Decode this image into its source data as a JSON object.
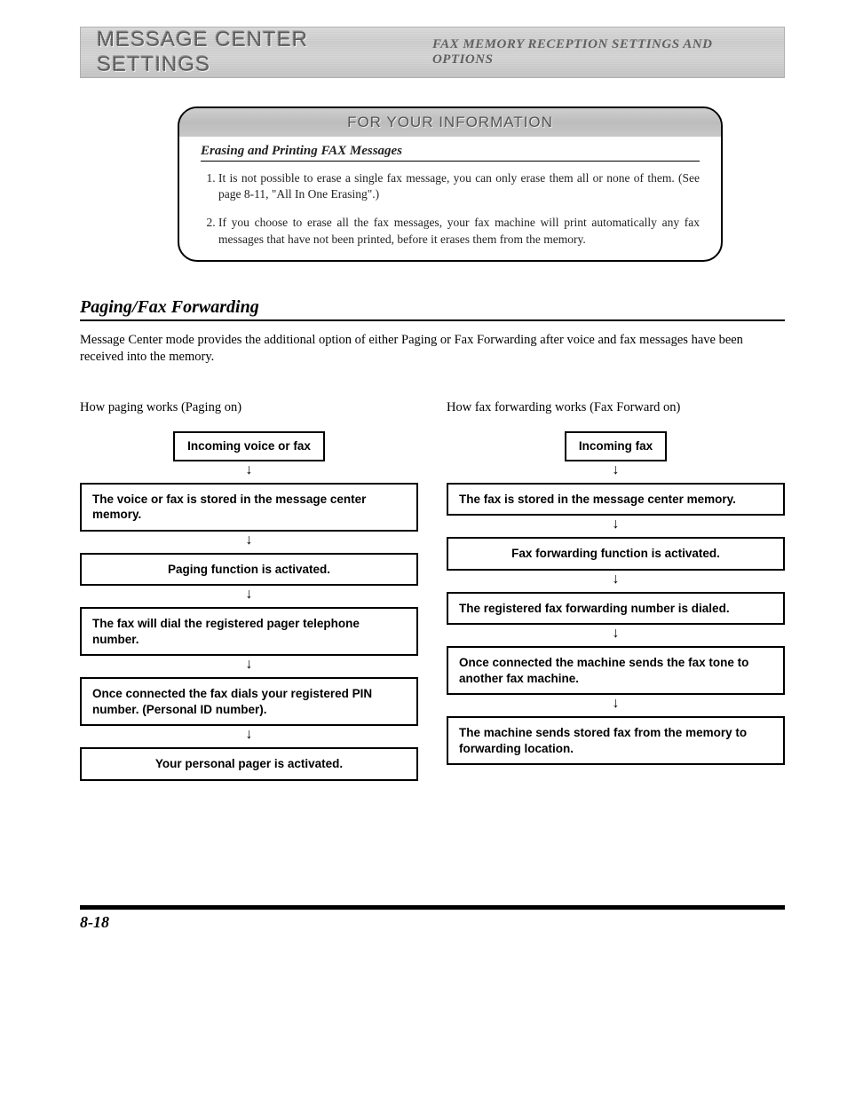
{
  "header": {
    "chapter": "MESSAGE CENTER SETTINGS",
    "section": "FAX MEMORY RECEPTION SETTINGS AND OPTIONS"
  },
  "info_box": {
    "title": "FOR YOUR INFORMATION",
    "subheading": "Erasing and Printing FAX Messages",
    "items": [
      "It is not possible to erase a single fax message, you can only erase them all or none of them. (See page 8-11, \"All In One Erasing\".)",
      "If you choose to erase all the fax messages, your fax machine will print automatically any fax messages that have not been printed, before it erases them from the memory."
    ]
  },
  "section": {
    "heading": "Paging/Fax Forwarding",
    "intro": "Message Center mode provides the additional option of either Paging or Fax Forwarding after voice and fax messages have been received into the memory."
  },
  "flows": {
    "left": {
      "heading": "How paging works (Paging on)",
      "steps": [
        "Incoming voice or fax",
        "The voice or fax is stored in the message center memory.",
        "Paging function is activated.",
        "The fax will dial the registered pager telephone number.",
        "Once connected the fax dials your registered PIN number. (Personal ID number).",
        "Your personal pager is activated."
      ]
    },
    "right": {
      "heading": "How fax forwarding works (Fax Forward on)",
      "steps": [
        "Incoming fax",
        "The fax is stored in the message center memory.",
        "Fax forwarding function is activated.",
        "The registered fax forwarding number is dialed.",
        "Once connected the machine sends the fax tone to another fax machine.",
        "The machine sends stored fax from the memory to forwarding location."
      ]
    }
  },
  "page_number": "8-18",
  "colors": {
    "text": "#222222",
    "band_bg": "#c8c8c8",
    "border": "#000000"
  },
  "typography": {
    "body_pt": 14,
    "heading_pt": 20,
    "flow_pt": 13.5
  }
}
